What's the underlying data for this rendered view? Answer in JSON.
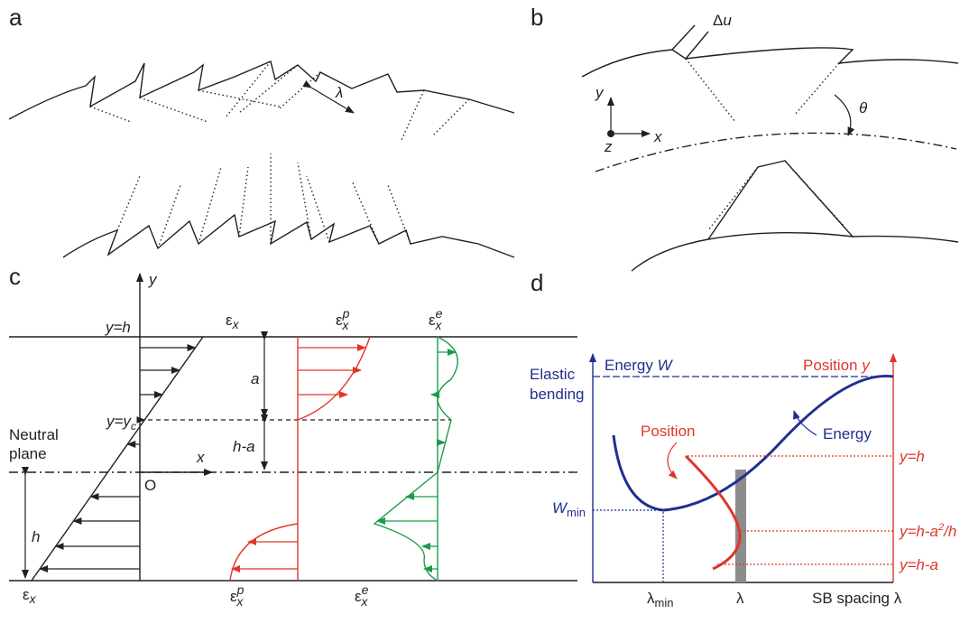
{
  "panel_a": {
    "label": "a",
    "lambda": "λ"
  },
  "panel_b": {
    "label": "b",
    "delta": "Δ",
    "u": "u",
    "y": "y",
    "x": "x",
    "z": "z",
    "theta": "θ"
  },
  "panel_c": {
    "label": "c",
    "y_axis": "y",
    "y_h": "y=h",
    "y_yc": {
      "main": "y=y",
      "sub": "c"
    },
    "a": "a",
    "h_minus_a": "h-a",
    "neutral_plane": [
      "Neutral",
      "plane"
    ],
    "x_axis": "x",
    "origin": "O",
    "h": "h",
    "eps_total": {
      "symbol": "ε",
      "sub": "x"
    },
    "eps_plastic": {
      "symbol": "ε",
      "sub": "x",
      "sup": "p"
    },
    "eps_elastic": {
      "symbol": "ε",
      "sub": "x",
      "sup": "e"
    }
  },
  "panel_d": {
    "label": "d",
    "energy_axis": {
      "text": "Energy ",
      "var": "W"
    },
    "position_axis": {
      "text": "Position ",
      "var": "y"
    },
    "elastic_bending": [
      "Elastic",
      "bending"
    ],
    "position": "Position",
    "energy": "Energy",
    "w_min": {
      "main": "W",
      "sub": "min"
    },
    "y_h": "y=h",
    "y_h_a2": {
      "main": "y=h-a",
      "sup": "2",
      "tail": "/h"
    },
    "y_h_a": "y=h-a",
    "lambda_min": {
      "main": "λ",
      "sub": "min"
    },
    "lambda": "λ",
    "sb_spacing": "SB spacing λ"
  }
}
